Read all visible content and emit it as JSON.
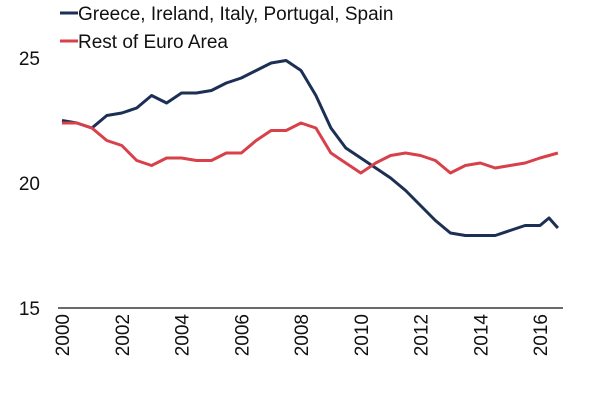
{
  "chart_data": {
    "type": "line",
    "title": "",
    "xlabel": "",
    "ylabel": "",
    "xlim": [
      2000,
      2016.7
    ],
    "ylim": [
      15,
      25
    ],
    "x_ticks": [
      "2000",
      "2002",
      "2004",
      "2006",
      "2008",
      "2010",
      "2012",
      "2014",
      "2016"
    ],
    "y_ticks": [
      "15",
      "20",
      "25"
    ],
    "grid": false,
    "legend_position": "top-left",
    "series": [
      {
        "name": "Greece, Ireland, Italy, Portugal, Spain",
        "color": "#1c2f55",
        "x": [
          2000,
          2000.5,
          2001,
          2001.5,
          2002,
          2002.5,
          2003,
          2003.5,
          2004,
          2004.5,
          2005,
          2005.5,
          2006,
          2006.5,
          2007,
          2007.5,
          2008,
          2008.5,
          2009,
          2009.5,
          2010,
          2010.5,
          2011,
          2011.5,
          2012,
          2012.5,
          2013,
          2013.5,
          2014,
          2014.5,
          2015,
          2015.5,
          2016,
          2016.3,
          2016.6
        ],
        "y": [
          22.5,
          22.4,
          22.2,
          22.7,
          22.8,
          23.0,
          23.5,
          23.2,
          23.6,
          23.6,
          23.7,
          24.0,
          24.2,
          24.5,
          24.8,
          24.9,
          24.5,
          23.5,
          22.2,
          21.4,
          21.0,
          20.6,
          20.2,
          19.7,
          19.1,
          18.5,
          18.0,
          17.9,
          17.9,
          17.9,
          18.1,
          18.3,
          18.3,
          18.6,
          18.2
        ]
      },
      {
        "name": "Rest of Euro Area",
        "color": "#d8404a",
        "x": [
          2000,
          2000.5,
          2001,
          2001.5,
          2002,
          2002.5,
          2003,
          2003.5,
          2004,
          2004.5,
          2005,
          2005.5,
          2006,
          2006.5,
          2007,
          2007.5,
          2008,
          2008.5,
          2009,
          2009.5,
          2010,
          2010.5,
          2011,
          2011.5,
          2012,
          2012.5,
          2013,
          2013.5,
          2014,
          2014.5,
          2015,
          2015.5,
          2016,
          2016.6
        ],
        "y": [
          22.4,
          22.4,
          22.2,
          21.7,
          21.5,
          20.9,
          20.7,
          21.0,
          21.0,
          20.9,
          20.9,
          21.2,
          21.2,
          21.7,
          22.1,
          22.1,
          22.4,
          22.2,
          21.2,
          20.8,
          20.4,
          20.8,
          21.1,
          21.2,
          21.1,
          20.9,
          20.4,
          20.7,
          20.8,
          20.6,
          20.7,
          20.8,
          21.0,
          21.2
        ]
      }
    ]
  }
}
